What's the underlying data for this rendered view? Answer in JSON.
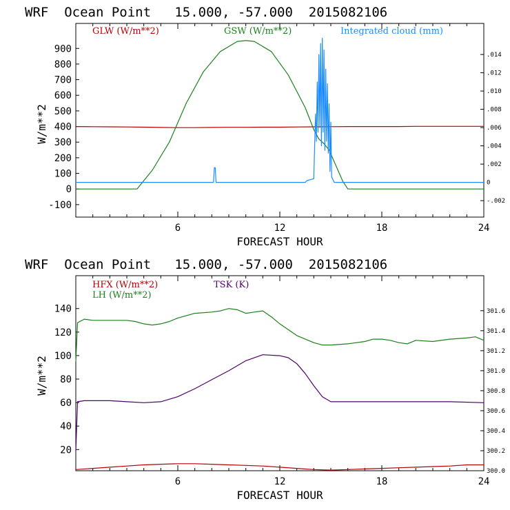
{
  "chart_data": [
    {
      "type": "line",
      "title": "WRF  Ocean Point   15.000, -57.000  2015082106",
      "xlabel": "FORECAST HOUR",
      "ylabel": "W/m**2",
      "xlim": [
        0,
        24
      ],
      "ylim": [
        -180,
        1060
      ],
      "x_ticks": [
        6,
        12,
        18,
        24
      ],
      "y_ticks": [
        -100,
        0,
        100,
        200,
        300,
        400,
        500,
        600,
        700,
        800,
        900
      ],
      "y2_ticks": [
        "-.002",
        "0",
        ".002",
        ".004",
        ".006",
        ".008",
        ".010",
        ".012",
        ".014"
      ],
      "y2_tick_values": [
        -0.002,
        0,
        0.002,
        0.004,
        0.006,
        0.008,
        0.01,
        0.012,
        0.014
      ],
      "y2lim": [
        -0.0038,
        0.0174
      ],
      "series": [
        {
          "name": "GLW (W/m**2)",
          "color": "#b30000",
          "axis": "left",
          "x": [
            0,
            1,
            2,
            3,
            4,
            5,
            6,
            7,
            8,
            9,
            10,
            11,
            12,
            13,
            14,
            15,
            16,
            17,
            18,
            19,
            20,
            21,
            22,
            23,
            24
          ],
          "y": [
            400,
            399,
            398,
            397,
            396,
            394,
            393,
            393,
            394,
            395,
            395,
            396,
            396,
            397,
            398,
            399,
            400,
            400,
            400,
            400,
            401,
            401,
            401,
            401,
            401
          ]
        },
        {
          "name": "GSW (W/m**2)",
          "color": "#1a801a",
          "axis": "left",
          "x": [
            0,
            3.6,
            4.5,
            5.5,
            6.5,
            7.5,
            8.5,
            9.5,
            10.0,
            10.5,
            11.5,
            12.5,
            13.5,
            14.0,
            14.3,
            14.6,
            14.9,
            15.3,
            15.7,
            16.0,
            24
          ],
          "y": [
            0,
            0,
            120,
            300,
            550,
            750,
            880,
            945,
            950,
            945,
            880,
            730,
            520,
            380,
            320,
            290,
            250,
            150,
            50,
            0,
            0
          ]
        },
        {
          "name": "Integrated cloud (mm)",
          "color": "#1a8cff",
          "axis": "right",
          "x": [
            0,
            8.1,
            8.15,
            8.2,
            8.25,
            13.5,
            13.6,
            14.0,
            14.05,
            14.1,
            14.15,
            14.2,
            14.25,
            14.3,
            14.35,
            14.4,
            14.45,
            14.5,
            14.55,
            14.6,
            14.65,
            14.7,
            14.75,
            14.8,
            14.85,
            14.9,
            14.95,
            15.0,
            15.05,
            15.1,
            15.2,
            24
          ],
          "y": [
            0,
            0,
            0.0016,
            0.0016,
            0,
            0,
            0.0002,
            0.0004,
            0.0042,
            0.0075,
            0.0045,
            0.011,
            0.0055,
            0.014,
            0.006,
            0.0152,
            0.004,
            0.0158,
            0.0055,
            0.0145,
            0.0035,
            0.0124,
            0.0045,
            0.0108,
            0.0032,
            0.0086,
            0.0012,
            0.0066,
            0.0006,
            0.0004,
            0,
            0
          ]
        }
      ]
    },
    {
      "type": "line",
      "title": "WRF  Ocean Point   15.000, -57.000  2015082106",
      "xlabel": "FORECAST HOUR",
      "ylabel": "W/m**2",
      "xlim": [
        0,
        24
      ],
      "ylim": [
        2,
        168
      ],
      "x_ticks": [
        6,
        12,
        18,
        24
      ],
      "y_ticks": [
        20,
        40,
        60,
        80,
        100,
        120,
        140
      ],
      "y2_ticks": [
        "300.0",
        "300.2",
        "300.4",
        "300.6",
        "300.8",
        "301.0",
        "301.2",
        "301.4",
        "301.6"
      ],
      "y2_tick_values": [
        300.0,
        300.2,
        300.4,
        300.6,
        300.8,
        301.0,
        301.2,
        301.4,
        301.6
      ],
      "y2lim": [
        300.0,
        301.95
      ],
      "series": [
        {
          "name": "HFX (W/m**2)",
          "color": "#b30000",
          "axis": "left",
          "x": [
            0,
            1,
            2,
            3,
            4,
            5,
            6,
            7,
            8,
            9,
            10,
            11,
            12,
            13,
            14,
            15,
            16,
            17,
            18,
            19,
            20,
            21,
            22,
            23,
            24
          ],
          "y": [
            3,
            4,
            5,
            6,
            7,
            7.5,
            8,
            8,
            7.5,
            7,
            6.5,
            6,
            5,
            4,
            3,
            2.5,
            3,
            3.5,
            4,
            4.5,
            5,
            5.5,
            6,
            7,
            7
          ]
        },
        {
          "name": "LH (W/m**2)",
          "color": "#1a801a",
          "axis": "left",
          "x": [
            0,
            0.1,
            0.5,
            1,
            2,
            3,
            3.5,
            4,
            4.5,
            5,
            5.5,
            6,
            7,
            8,
            8.5,
            9,
            9.5,
            10,
            10.5,
            11,
            11.5,
            12,
            13,
            14,
            14.5,
            15,
            16,
            17,
            17.5,
            18,
            18.5,
            19,
            19.5,
            20,
            21,
            22,
            23,
            23.5,
            24
          ],
          "y": [
            95,
            128,
            131,
            130,
            130,
            130,
            129,
            127,
            126,
            127,
            129,
            132,
            136,
            137,
            138,
            140,
            139,
            136,
            137,
            138,
            133,
            127,
            117,
            111,
            109,
            109,
            110,
            112,
            114,
            114,
            113,
            111,
            110,
            113,
            112,
            114,
            115,
            116,
            113
          ]
        },
        {
          "name": "TSK (K)",
          "color": "#4d0066",
          "axis": "right",
          "x": [
            0,
            0.1,
            0.5,
            1,
            2,
            3,
            4,
            5,
            6,
            7,
            8,
            9,
            10,
            11,
            12,
            12.5,
            13,
            13.5,
            14,
            14.5,
            15,
            16,
            18,
            20,
            22,
            24
          ],
          "y": [
            300.2,
            300.69,
            300.7,
            300.7,
            300.7,
            300.69,
            300.68,
            300.69,
            300.74,
            300.82,
            300.91,
            301.0,
            301.1,
            301.16,
            301.15,
            301.13,
            301.07,
            300.97,
            300.85,
            300.74,
            300.69,
            300.69,
            300.69,
            300.69,
            300.69,
            300.68
          ]
        }
      ]
    }
  ]
}
